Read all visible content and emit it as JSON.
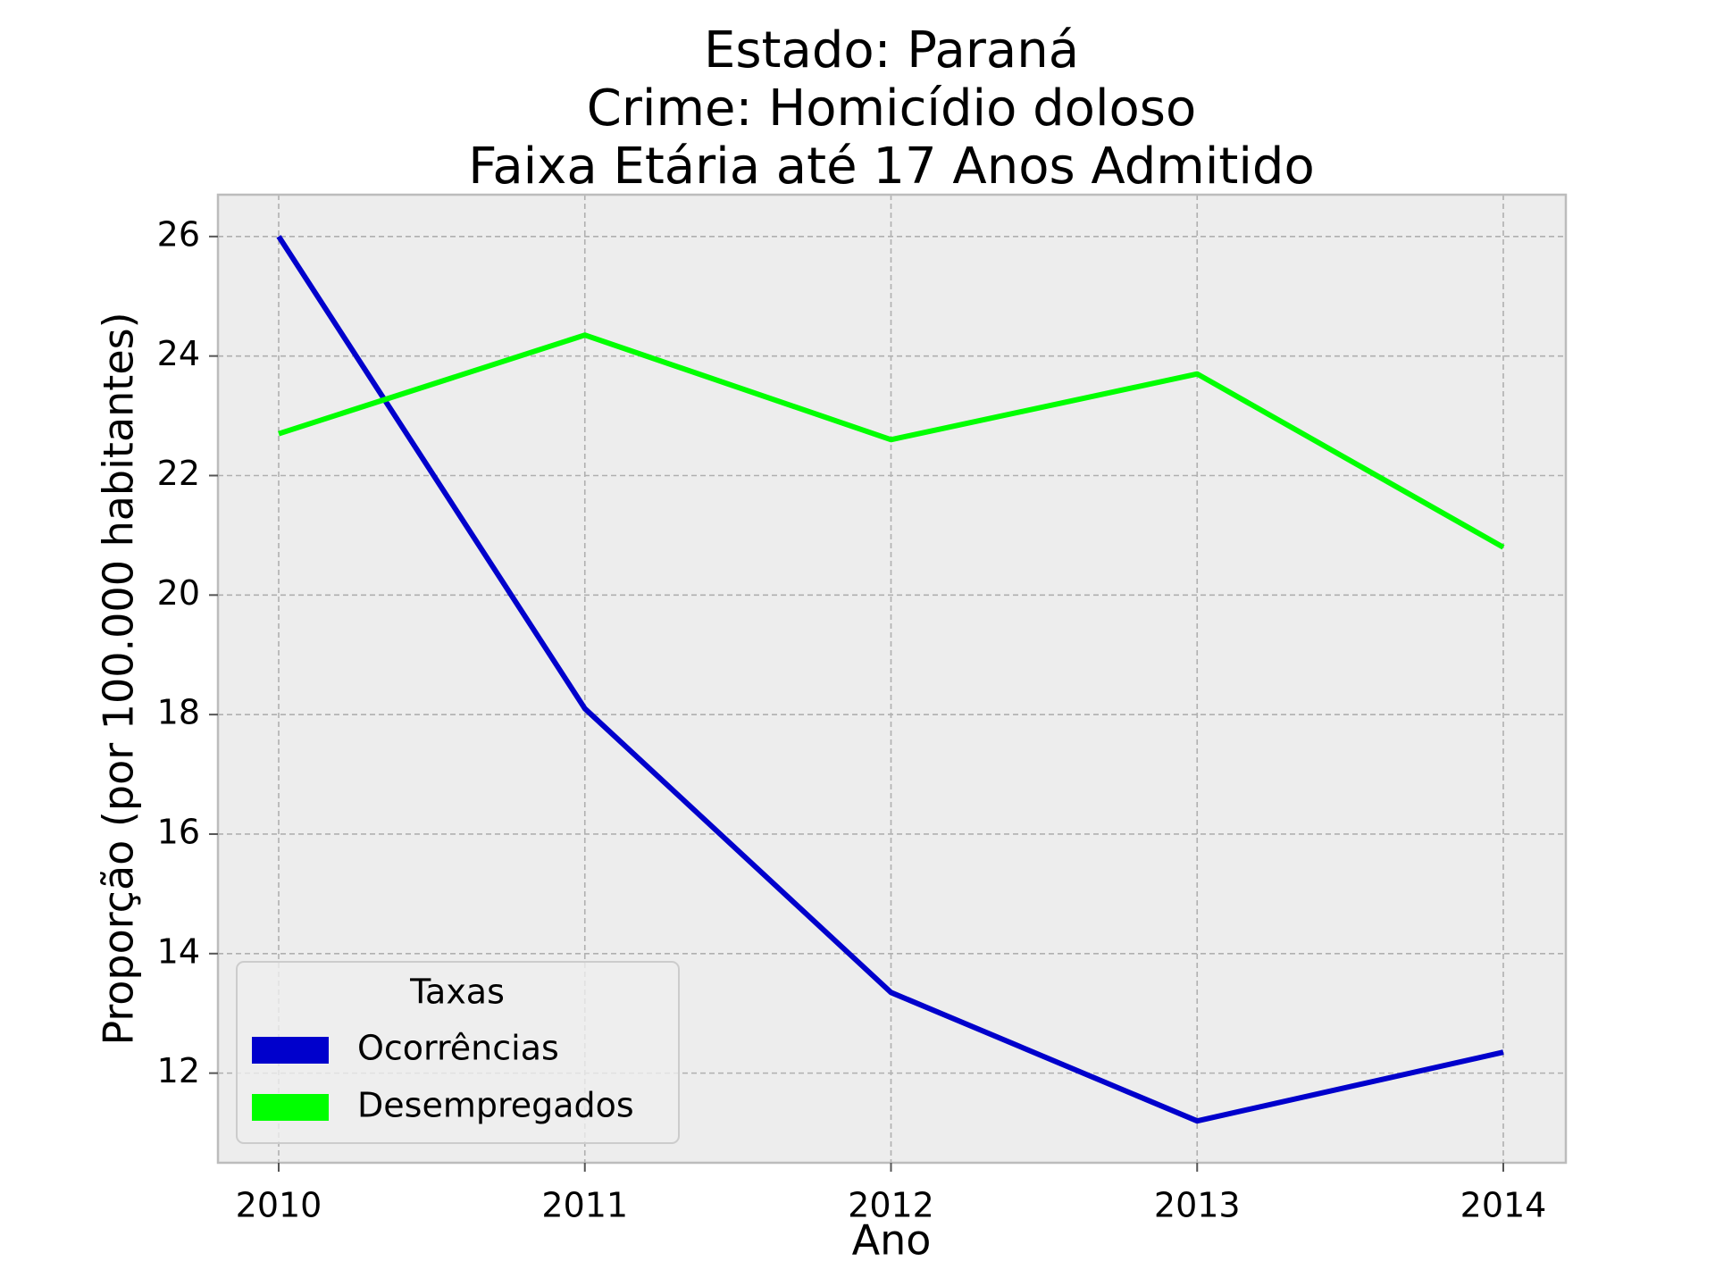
{
  "chart_data": {
    "type": "line",
    "title_lines": [
      "Estado: Paraná",
      "Crime: Homicídio doloso",
      "Faixa Etária até 17 Anos   Admitido"
    ],
    "xlabel": "Ano",
    "ylabel": "Proporção (por 100.000 habitantes)",
    "x": [
      "2010",
      "2011",
      "2012",
      "2013",
      "2014"
    ],
    "y_ticks": [
      "12",
      "14",
      "16",
      "18",
      "20",
      "22",
      "24",
      "26"
    ],
    "ylim": [
      10.5,
      26.7
    ],
    "grid": true,
    "legend": {
      "title": "Taxas",
      "placement": "lower-left"
    },
    "series": [
      {
        "name": "Ocorrências",
        "color": "#0000cc",
        "values": [
          26.0,
          18.1,
          13.35,
          11.2,
          12.35
        ]
      },
      {
        "name": "Desempregados",
        "color": "#00ff00",
        "values": [
          22.7,
          24.35,
          22.6,
          23.7,
          20.8
        ]
      }
    ],
    "colors": {
      "plot_background": "#ededed",
      "frame": "#bcbcbc"
    }
  }
}
